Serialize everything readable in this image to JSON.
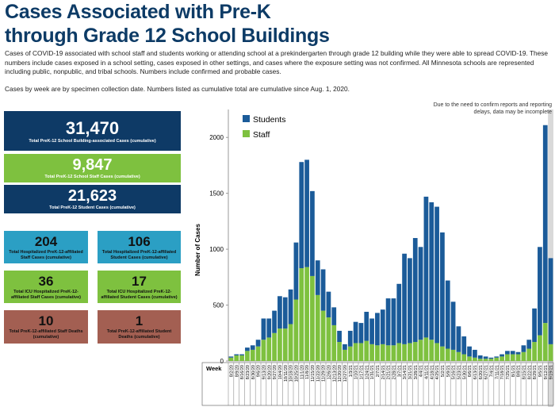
{
  "header": {
    "title": "Cases Associated with Pre-K through Grade 12 School Buildings",
    "description": "Cases of COVID-19 associated with school staff and students working or attending school at a prekindergarten through grade 12 building while they were able to spread COVID-19. These numbers include cases exposed in a school setting, cases exposed in other settings, and cases where the exposure setting was not confirmed. All Minnesota schools are represented including public, nonpublic, and tribal schools. Numbers include confirmed and probable cases.",
    "note": "Cases by week are by specimen collection date. Numbers listed as cumulative total are cumulative since Aug. 1, 2020."
  },
  "stats": [
    {
      "value": "31,470",
      "label": "Total PreK-12 School Building-associated Cases (cumulative)"
    },
    {
      "value": "9,847",
      "label": "Total PreK-12 School Staff Cases (cumulative)"
    },
    {
      "value": "21,623",
      "label": "Total PreK-12 Student Cases (cumulative)"
    },
    {
      "value": "204",
      "label": "Total Hospitalized PreK-12-affiliated Staff Cases (cumulative)"
    },
    {
      "value": "106",
      "label": "Total Hospitalized PreK-12-affiliated Student Cases (cumulative)"
    },
    {
      "value": "36",
      "label": "Total ICU Hospitalized PreK-12-affiliated Staff Cases (cumulative)"
    },
    {
      "value": "17",
      "label": "Total ICU Hospitalized PreK-12-affiliated Student Cases (cumulative)"
    },
    {
      "value": "10",
      "label": "Total PreK-12-affiliated Staff Deaths (cumulative)"
    },
    {
      "value": "1",
      "label": "Total PreK-12-affiliated Student Deaths (cumulative)"
    }
  ],
  "chart_data": {
    "type": "bar",
    "stacked": true,
    "y_label": "Number of Cases",
    "x_label": "Week",
    "annotation": "Due to the need to confirm reports and reporting delays, data may be incomplete",
    "categories": [
      "8/2/20",
      "8/9/20",
      "8/16/20",
      "8/23/20",
      "8/30/20",
      "9/6/20",
      "9/13/20",
      "9/20/20",
      "9/27/20",
      "10/4/20",
      "10/11/20",
      "10/18/20",
      "10/25/20",
      "11/1/20",
      "11/8/20",
      "11/15/20",
      "11/22/20",
      "11/29/20",
      "12/6/20",
      "12/13/20",
      "12/20/20",
      "12/27/20",
      "1/3/21",
      "1/10/21",
      "1/17/21",
      "1/24/21",
      "1/31/21",
      "2/7/21",
      "2/14/21",
      "2/21/21",
      "2/28/21",
      "3/7/21",
      "3/14/21",
      "3/21/21",
      "3/28/21",
      "4/4/21",
      "4/11/21",
      "4/18/21",
      "4/25/21",
      "5/2/21",
      "5/9/21",
      "5/16/21",
      "5/23/21",
      "5/30/21",
      "6/6/21",
      "6/13/21",
      "6/20/21",
      "6/27/21",
      "7/4/21",
      "7/11/21",
      "7/18/21",
      "7/25/21",
      "8/1/21",
      "8/8/21",
      "8/15/21",
      "8/22/21",
      "8/29/21",
      "9/5/21",
      "9/12/21",
      "9/19/21"
    ],
    "series": [
      {
        "name": "Staff",
        "color": "#7ec13f",
        "values": [
          30,
          50,
          50,
          90,
          100,
          130,
          190,
          210,
          250,
          290,
          290,
          330,
          550,
          830,
          840,
          760,
          590,
          450,
          390,
          320,
          170,
          100,
          130,
          160,
          160,
          180,
          150,
          140,
          150,
          140,
          140,
          160,
          150,
          160,
          170,
          190,
          210,
          190,
          160,
          130,
          110,
          100,
          80,
          60,
          40,
          30,
          20,
          20,
          20,
          30,
          40,
          60,
          60,
          60,
          80,
          110,
          170,
          230,
          340,
          150
        ]
      },
      {
        "name": "Students",
        "color": "#1b5b99",
        "values": [
          10,
          10,
          10,
          30,
          40,
          60,
          190,
          170,
          200,
          290,
          280,
          310,
          510,
          950,
          960,
          760,
          310,
          370,
          230,
          160,
          100,
          50,
          140,
          190,
          180,
          260,
          230,
          290,
          310,
          420,
          420,
          530,
          810,
          760,
          930,
          830,
          1260,
          1230,
          1220,
          1020,
          610,
          430,
          230,
          160,
          90,
          70,
          30,
          20,
          10,
          10,
          20,
          30,
          30,
          20,
          60,
          80,
          300,
          790,
          1770,
          770
        ]
      }
    ],
    "ylim": [
      0,
      2250
    ],
    "yticks": [
      0,
      500,
      1000,
      1500,
      2000
    ],
    "grid": false
  }
}
